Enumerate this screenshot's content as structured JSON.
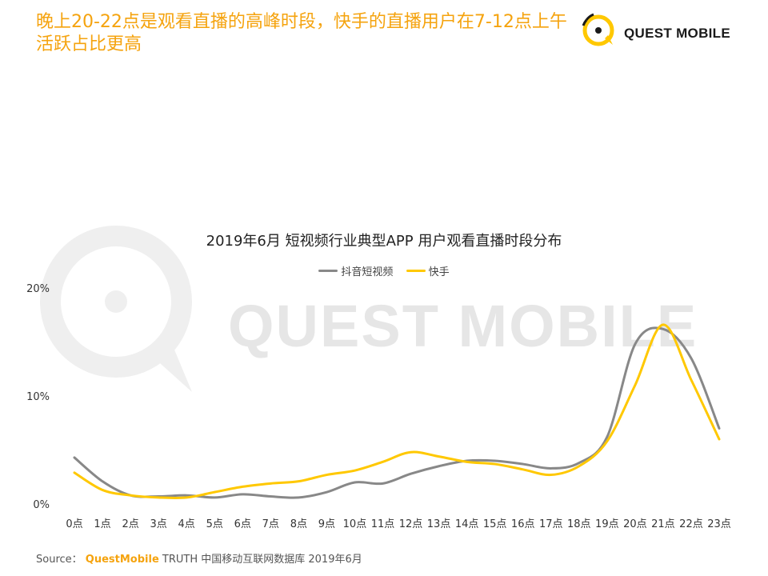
{
  "headline": "晚上20-22点是观看直播的高峰时段，快手的直播用户在7-12点上午活跃占比更高",
  "logo": {
    "text": "QUEST MOBILE"
  },
  "watermark": {
    "text": "QUEST MOBILE"
  },
  "source": {
    "label": "Source：",
    "brand": "QuestMobile",
    "rest": "TRUTH 中国移动互联网数据库 2019年6月"
  },
  "colors": {
    "accent": "#F5A30E",
    "douyin": "#888888",
    "kuaishou": "#FFC800"
  },
  "chart_data": {
    "type": "line",
    "title": "2019年6月 短视频行业典型APP 用户观看直播时段分布",
    "categories": [
      "0点",
      "1点",
      "2点",
      "3点",
      "4点",
      "5点",
      "6点",
      "7点",
      "8点",
      "9点",
      "10点",
      "11点",
      "12点",
      "13点",
      "14点",
      "15点",
      "16点",
      "17点",
      "18点",
      "19点",
      "20点",
      "21点",
      "22点",
      "23点"
    ],
    "series": [
      {
        "name": "抖音短视频",
        "color": "#888888",
        "values": [
          4.3,
          2.1,
          0.8,
          0.7,
          0.8,
          0.6,
          0.9,
          0.7,
          0.6,
          1.1,
          2.0,
          1.9,
          2.8,
          3.5,
          4.0,
          4.0,
          3.7,
          3.3,
          3.8,
          6.2,
          14.8,
          16.2,
          13.5,
          7.0
        ]
      },
      {
        "name": "快手",
        "color": "#FFC800",
        "values": [
          2.9,
          1.3,
          0.8,
          0.6,
          0.6,
          1.1,
          1.6,
          1.9,
          2.1,
          2.7,
          3.1,
          3.9,
          4.8,
          4.4,
          3.9,
          3.7,
          3.2,
          2.7,
          3.5,
          5.8,
          11.0,
          16.6,
          11.5,
          6.0
        ]
      }
    ],
    "yticks": [
      "0%",
      "10%",
      "20%"
    ],
    "ylim": [
      0,
      20
    ],
    "grid": false,
    "legend_position": "top-center"
  }
}
